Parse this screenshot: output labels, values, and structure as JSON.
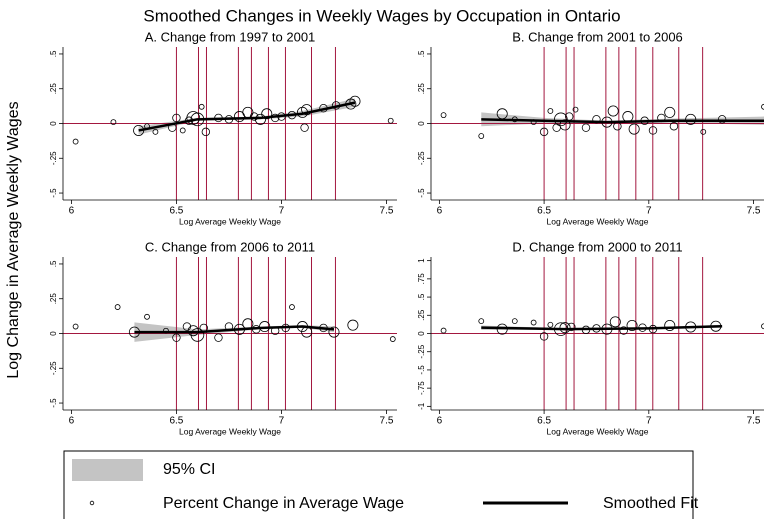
{
  "title": "Smoothed Changes in Weekly Wages by Occupation in Ontario",
  "ylabel": "Log Change in Average Weekly Wages",
  "ref_color": "#a3173f",
  "legend": [
    {
      "name": "95% CI",
      "color": "#c4c4c4"
    },
    {
      "name": "Percent Change in Average Wage",
      "color": "#000000"
    },
    {
      "name": "Smoothed Fit",
      "color": "#000000"
    }
  ],
  "chart_data": [
    {
      "type": "scatter",
      "title": "A. Change from 1997 to 2001",
      "xlabel": "Log Average Weekly Wage",
      "xlim": [
        5.96,
        7.55
      ],
      "xticks": [
        6,
        6.5,
        7,
        7.5
      ],
      "ylim": [
        -0.55,
        0.55
      ],
      "yticks": [
        {
          "value": 0.5,
          "label": ".5"
        },
        {
          "value": 0.25,
          "label": ".25"
        },
        0,
        {
          "value": -0.25,
          "label": "-.25"
        },
        {
          "value": -0.5,
          "label": "-.5"
        }
      ],
      "vlines": [
        6.5,
        6.605,
        6.643,
        6.795,
        6.857,
        6.938,
        7.019,
        7.143,
        7.257
      ],
      "hline": 0,
      "x": [
        6.02,
        6.2,
        6.32,
        6.36,
        6.4,
        6.48,
        6.5,
        6.53,
        6.56,
        6.58,
        6.6,
        6.62,
        6.64,
        6.7,
        6.75,
        6.8,
        6.84,
        6.87,
        6.9,
        6.93,
        6.97,
        7.0,
        7.05,
        7.1,
        7.11,
        7.12,
        7.2,
        7.26,
        7.33,
        7.35,
        7.52
      ],
      "values": [
        -0.13,
        0.01,
        -0.05,
        -0.02,
        -0.06,
        -0.03,
        0.04,
        -0.05,
        0.02,
        0.04,
        0.03,
        0.12,
        -0.06,
        0.04,
        0.03,
        0.05,
        0.08,
        0.05,
        0.03,
        0.07,
        0.04,
        0.05,
        0.06,
        0.08,
        -0.03,
        0.1,
        0.11,
        0.13,
        0.14,
        0.16,
        0.02
      ],
      "sizes": [
        1,
        1,
        3,
        1,
        1,
        2,
        2,
        1,
        2,
        4,
        4,
        1,
        2,
        2,
        2,
        3,
        3,
        2,
        3,
        3,
        2,
        2,
        2,
        3,
        2,
        3,
        2,
        2,
        3,
        3,
        1
      ],
      "fit": {
        "x": [
          6.32,
          6.6,
          6.9,
          7.1,
          7.35
        ],
        "values": [
          -0.05,
          0.03,
          0.04,
          0.07,
          0.15
        ],
        "upper": [
          -0.02,
          0.04,
          0.05,
          0.09,
          0.18
        ],
        "lower": [
          -0.08,
          0.02,
          0.03,
          0.05,
          0.12
        ]
      }
    },
    {
      "type": "scatter",
      "title": "B. Change from 2001 to 2006",
      "xlabel": "Log Average Weekly Wage",
      "xlim": [
        5.96,
        7.55
      ],
      "xticks": [
        6,
        6.5,
        7,
        7.5
      ],
      "ylim": [
        -0.55,
        0.55
      ],
      "yticks": [
        {
          "value": 0.5,
          "label": ".5"
        },
        {
          "value": 0.25,
          "label": ".25"
        },
        0,
        {
          "value": -0.25,
          "label": "-.25"
        },
        {
          "value": -0.5,
          "label": "-.5"
        }
      ],
      "vlines": [
        6.5,
        6.605,
        6.643,
        6.795,
        6.857,
        6.938,
        7.019,
        7.143,
        7.257
      ],
      "hline": 0,
      "x": [
        6.02,
        6.2,
        6.3,
        6.36,
        6.45,
        6.5,
        6.53,
        6.56,
        6.58,
        6.6,
        6.62,
        6.65,
        6.7,
        6.75,
        6.8,
        6.83,
        6.85,
        6.9,
        6.93,
        6.98,
        7.02,
        7.06,
        7.1,
        7.12,
        7.2,
        7.26,
        7.35,
        7.55
      ],
      "values": [
        0.06,
        -0.09,
        0.07,
        0.03,
        0.01,
        -0.06,
        0.09,
        -0.03,
        0.03,
        -0.01,
        0.05,
        0.1,
        -0.03,
        0.03,
        0.01,
        0.09,
        -0.02,
        0.05,
        -0.04,
        0.02,
        -0.05,
        0.04,
        0.08,
        -0.02,
        0.03,
        -0.06,
        0.03,
        0.12
      ],
      "sizes": [
        1,
        1,
        3,
        1,
        1,
        2,
        1,
        2,
        4,
        3,
        2,
        1,
        2,
        2,
        3,
        3,
        2,
        3,
        3,
        2,
        2,
        2,
        3,
        2,
        3,
        1,
        2,
        1
      ],
      "fit": {
        "x": [
          6.2,
          6.5,
          6.8,
          7.1,
          7.55
        ],
        "values": [
          0.03,
          0.02,
          0.01,
          0.02,
          0.02
        ],
        "upper": [
          0.08,
          0.04,
          0.02,
          0.035,
          0.05
        ],
        "lower": [
          -0.02,
          0.0,
          0.0,
          0.005,
          -0.01
        ]
      }
    },
    {
      "type": "scatter",
      "title": "C. Change from 2006 to 2011",
      "xlabel": "Log Average Weekly Wage",
      "xlim": [
        5.96,
        7.55
      ],
      "xticks": [
        6,
        6.5,
        7,
        7.5
      ],
      "ylim": [
        -0.55,
        0.55
      ],
      "yticks": [
        {
          "value": 0.5,
          "label": ".5"
        },
        {
          "value": 0.25,
          "label": ".25"
        },
        0,
        {
          "value": -0.25,
          "label": "-.25"
        },
        {
          "value": -0.5,
          "label": "-.5"
        }
      ],
      "vlines": [
        6.5,
        6.605,
        6.643,
        6.795,
        6.857,
        6.938,
        7.019,
        7.143,
        7.257
      ],
      "hline": 0,
      "x": [
        6.02,
        6.22,
        6.3,
        6.36,
        6.45,
        6.5,
        6.55,
        6.58,
        6.6,
        6.63,
        6.7,
        6.75,
        6.8,
        6.84,
        6.88,
        6.92,
        6.97,
        7.02,
        7.05,
        7.1,
        7.12,
        7.2,
        7.25,
        7.34,
        7.53
      ],
      "values": [
        0.05,
        0.19,
        0.01,
        0.12,
        0.02,
        -0.03,
        0.05,
        0.02,
        -0.01,
        0.04,
        -0.03,
        0.05,
        0.03,
        0.07,
        0.03,
        0.05,
        0.02,
        0.04,
        0.19,
        0.05,
        0.01,
        0.04,
        0.01,
        0.06,
        -0.04
      ],
      "sizes": [
        1,
        1,
        3,
        1,
        1,
        2,
        2,
        3,
        4,
        2,
        2,
        2,
        3,
        3,
        2,
        3,
        2,
        2,
        1,
        3,
        3,
        2,
        3,
        3,
        1
      ],
      "fit": {
        "x": [
          6.3,
          6.6,
          6.9,
          7.1,
          7.25
        ],
        "values": [
          0.01,
          0.01,
          0.04,
          0.05,
          0.03
        ],
        "upper": [
          0.08,
          0.03,
          0.05,
          0.06,
          0.05
        ],
        "lower": [
          -0.06,
          -0.01,
          0.03,
          0.04,
          0.01
        ]
      }
    },
    {
      "type": "scatter",
      "title": "D. Change from 2000 to 2011",
      "xlabel": "Log Average Weekly Wage",
      "xlim": [
        5.96,
        7.55
      ],
      "xticks": [
        6,
        6.5,
        7,
        7.5
      ],
      "ylim": [
        -1.05,
        1.05
      ],
      "yticks": [
        1,
        {
          "value": 0.75,
          "label": ".75"
        },
        {
          "value": 0.5,
          "label": ".5"
        },
        {
          "value": 0.25,
          "label": ".25"
        },
        0,
        {
          "value": -0.25,
          "label": "-.25"
        },
        {
          "value": -0.5,
          "label": "-.5"
        },
        {
          "value": -0.75,
          "label": "-.75"
        },
        -1
      ],
      "vlines": [
        6.5,
        6.605,
        6.643,
        6.795,
        6.857,
        6.938,
        7.019,
        7.143,
        7.257
      ],
      "hline": 0,
      "x": [
        6.02,
        6.2,
        6.3,
        6.36,
        6.45,
        6.5,
        6.53,
        6.58,
        6.6,
        6.63,
        6.7,
        6.75,
        6.8,
        6.84,
        6.88,
        6.92,
        6.97,
        7.02,
        7.1,
        7.2,
        7.32,
        7.55
      ],
      "values": [
        0.04,
        0.17,
        0.06,
        0.17,
        0.15,
        -0.04,
        0.12,
        0.06,
        0.08,
        0.09,
        0.05,
        0.07,
        0.06,
        0.16,
        0.04,
        0.11,
        0.08,
        0.06,
        0.11,
        0.09,
        0.1,
        0.1
      ],
      "sizes": [
        1,
        1,
        3,
        1,
        1,
        2,
        1,
        4,
        3,
        2,
        2,
        2,
        3,
        3,
        2,
        3,
        2,
        2,
        3,
        3,
        3,
        1
      ],
      "fit": {
        "x": [
          6.2,
          6.6,
          7.0,
          7.35
        ],
        "values": [
          0.08,
          0.06,
          0.07,
          0.1
        ],
        "upper": [
          0.11,
          0.07,
          0.08,
          0.12
        ],
        "lower": [
          0.05,
          0.05,
          0.06,
          0.08
        ]
      }
    }
  ]
}
